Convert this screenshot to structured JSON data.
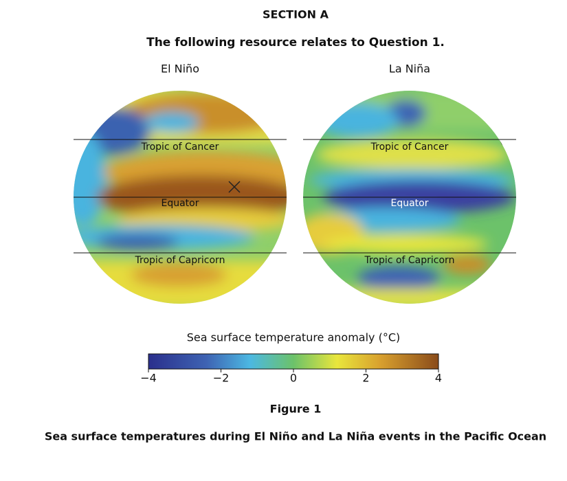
{
  "header": {
    "section": "SECTION A",
    "intro": "The following resource relates to Question 1."
  },
  "maps": [
    {
      "title": "El Niño",
      "labels": [
        "Tropic of Cancer",
        "Equator",
        "Tropic of Capricorn"
      ]
    },
    {
      "title": "La Niña",
      "labels": [
        "Tropic of Cancer",
        "Equator",
        "Tropic of Capricorn"
      ]
    }
  ],
  "colorbar": {
    "title": "Sea surface temperature anomaly (°C)",
    "range": [
      -4,
      4
    ],
    "ticks": [
      {
        "value": -4,
        "label": "−4"
      },
      {
        "value": -2,
        "label": "−2"
      },
      0,
      2,
      4
    ]
  },
  "figure": {
    "label": "Figure 1",
    "caption": "Sea surface temperatures during El Niño and La Niña events in the Pacific Ocean"
  }
}
